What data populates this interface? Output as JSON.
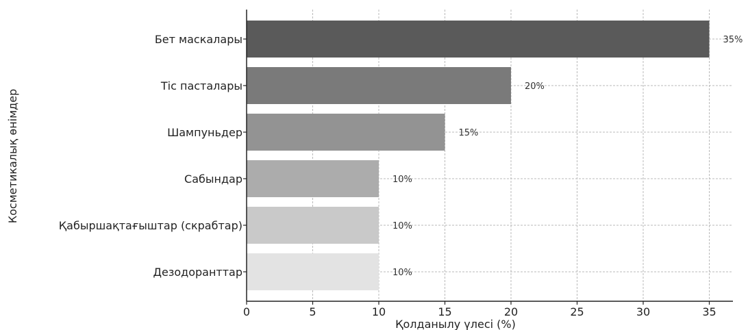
{
  "chart_data": {
    "type": "bar",
    "orientation": "horizontal",
    "categories": [
      "Бет маскалары",
      "Тіс пасталары",
      "Шампуньдер",
      "Сабындар",
      "Қабыршақтағыштар (скрабтар)",
      "Дезодоранттар"
    ],
    "values": [
      35,
      20,
      15,
      10,
      10,
      10
    ],
    "data_labels": [
      "35%",
      "20%",
      "15%",
      "10%",
      "10%",
      "10%"
    ],
    "bar_colors": [
      "#5a5a5a",
      "#7a7a7a",
      "#939393",
      "#acacac",
      "#c9c9c9",
      "#e3e3e3"
    ],
    "xlabel": "Қолданылу үлесі (%)",
    "ylabel": "Косметикалық өнімдер",
    "xlim": [
      0,
      37
    ],
    "xticks": [
      0,
      5,
      10,
      15,
      20,
      25,
      30,
      35
    ],
    "grid": true
  }
}
